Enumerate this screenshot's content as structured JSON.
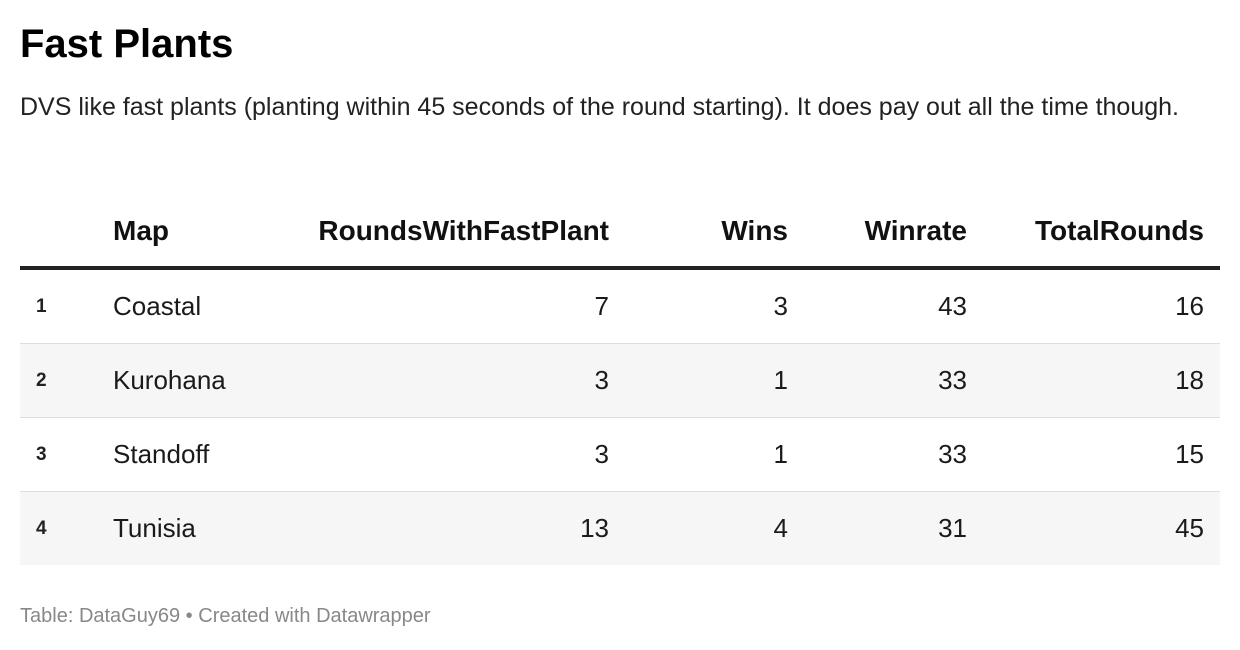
{
  "title": "Fast Plants",
  "subtitle": "DVS like fast plants (planting within 45 seconds of the round starting). It does pay out all the time though.",
  "footer": {
    "source_label": "Table:",
    "source_name": "DataGuy69",
    "separator": "•",
    "credit": "Created with Datawrapper"
  },
  "chart_data": {
    "type": "table",
    "columns": [
      "",
      "Map",
      "RoundsWithFastPlant",
      "Wins",
      "Winrate",
      "TotalRounds"
    ],
    "rows": [
      {
        "rank": "1",
        "map": "Coastal",
        "rounds_fast": 7,
        "wins": 3,
        "winrate": 43,
        "total": 16
      },
      {
        "rank": "2",
        "map": "Kurohana",
        "rounds_fast": 3,
        "wins": 1,
        "winrate": 33,
        "total": 18
      },
      {
        "rank": "3",
        "map": "Standoff",
        "rounds_fast": 3,
        "wins": 1,
        "winrate": 33,
        "total": 15
      },
      {
        "rank": "4",
        "map": "Tunisia",
        "rounds_fast": 13,
        "wins": 4,
        "winrate": 31,
        "total": 45
      }
    ]
  },
  "colors": {
    "title": "#000000",
    "header_rule": "#222222",
    "row_divider": "#dedede",
    "alt_row": "#f6f6f6",
    "footer": "#888888"
  }
}
